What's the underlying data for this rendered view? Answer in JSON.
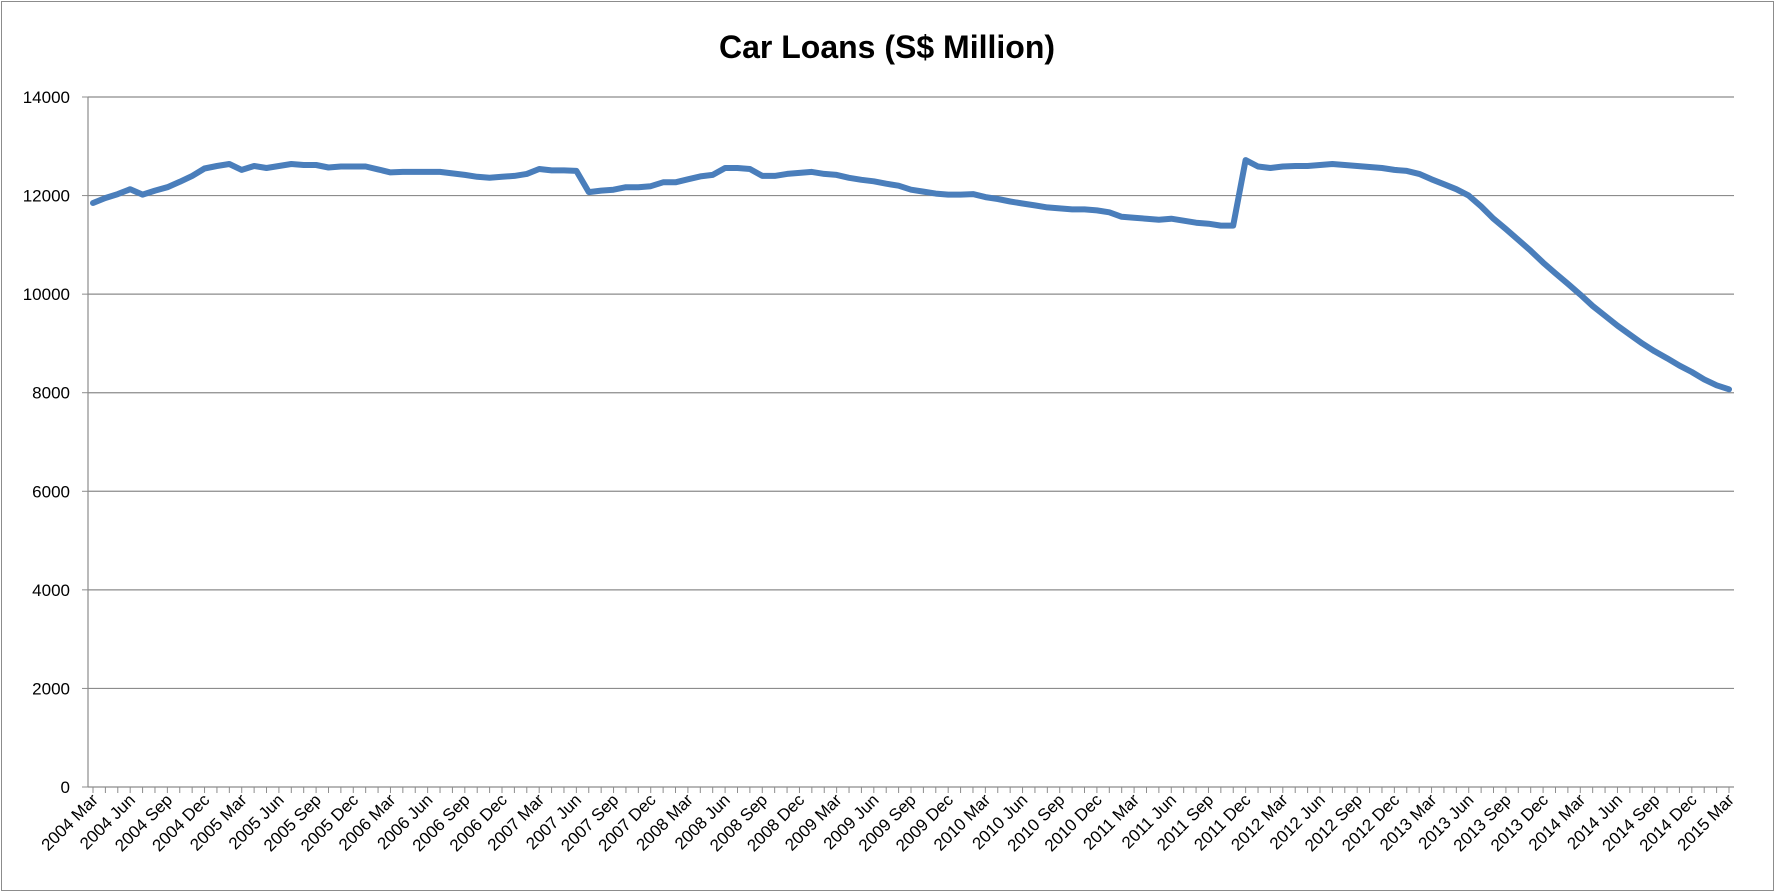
{
  "chart_data": {
    "type": "line",
    "title": "Car Loans (S$ Million)",
    "xlabel": "",
    "ylabel": "",
    "ylim": [
      0,
      14000
    ],
    "yticks": [
      "0",
      "2000",
      "4000",
      "6000",
      "8000",
      "10000",
      "12000",
      "14000"
    ],
    "grid": "horizontal",
    "legend": "none",
    "series_color": "#4a7ebb",
    "x_tick_labels": [
      "2004 Mar",
      "2004 Jun",
      "2004 Sep",
      "2004 Dec",
      "2005 Mar",
      "2005 Jun",
      "2005 Sep",
      "2005 Dec",
      "2006 Mar",
      "2006 Jun",
      "2006 Sep",
      "2006 Dec",
      "2007 Mar",
      "2007 Jun",
      "2007 Sep",
      "2007 Dec",
      "2008 Mar",
      "2008 Jun",
      "2008 Sep",
      "2008 Dec",
      "2009 Mar",
      "2009 Jun",
      "2009 Sep",
      "2009 Dec",
      "2010 Mar",
      "2010 Jun",
      "2010 Sep",
      "2010 Dec",
      "2011 Mar",
      "2011 Jun",
      "2011 Sep",
      "2011 Dec",
      "2012 Mar",
      "2012 Jun",
      "2012 Sep",
      "2012 Dec",
      "2013 Mar",
      "2013 Jun",
      "2013 Sep",
      "2013 Dec",
      "2014 Mar",
      "2014 Jun",
      "2014 Sep",
      "2014 Dec",
      "2015 Mar"
    ],
    "x_start": "2004 Mar",
    "x_frequency": "monthly",
    "series": [
      {
        "values": [
          11850,
          11950,
          12030,
          12130,
          12020,
          12100,
          12170,
          12280,
          12400,
          12550,
          12600,
          12640,
          12520,
          12600,
          12560,
          12600,
          12640,
          12620,
          12620,
          12570,
          12590,
          12590,
          12590,
          12530,
          12470,
          12480,
          12480,
          12480,
          12480,
          12450,
          12420,
          12380,
          12360,
          12380,
          12400,
          12440,
          12540,
          12510,
          12510,
          12500,
          12070,
          12100,
          12120,
          12170,
          12170,
          12190,
          12270,
          12270,
          12330,
          12390,
          12420,
          12560,
          12560,
          12540,
          12400,
          12400,
          12440,
          12460,
          12480,
          12440,
          12420,
          12360,
          12320,
          12290,
          12240,
          12200,
          12120,
          12080,
          12040,
          12020,
          12020,
          12030,
          11970,
          11930,
          11880,
          11840,
          11800,
          11760,
          11740,
          11720,
          11720,
          11700,
          11660,
          11570,
          11550,
          11530,
          11510,
          11530,
          11490,
          11450,
          11430,
          11390,
          11390,
          12720,
          12590,
          12560,
          12590,
          12600,
          12600,
          12620,
          12640,
          12620,
          12600,
          12580,
          12560,
          12520,
          12500,
          12440,
          12330,
          12230,
          12130,
          12000,
          11780,
          11530,
          11320,
          11100,
          10880,
          10640,
          10420,
          10210,
          9990,
          9760,
          9560,
          9360,
          9180,
          9000,
          8840,
          8700,
          8550,
          8420,
          8270,
          8150,
          8070
        ]
      }
    ]
  }
}
